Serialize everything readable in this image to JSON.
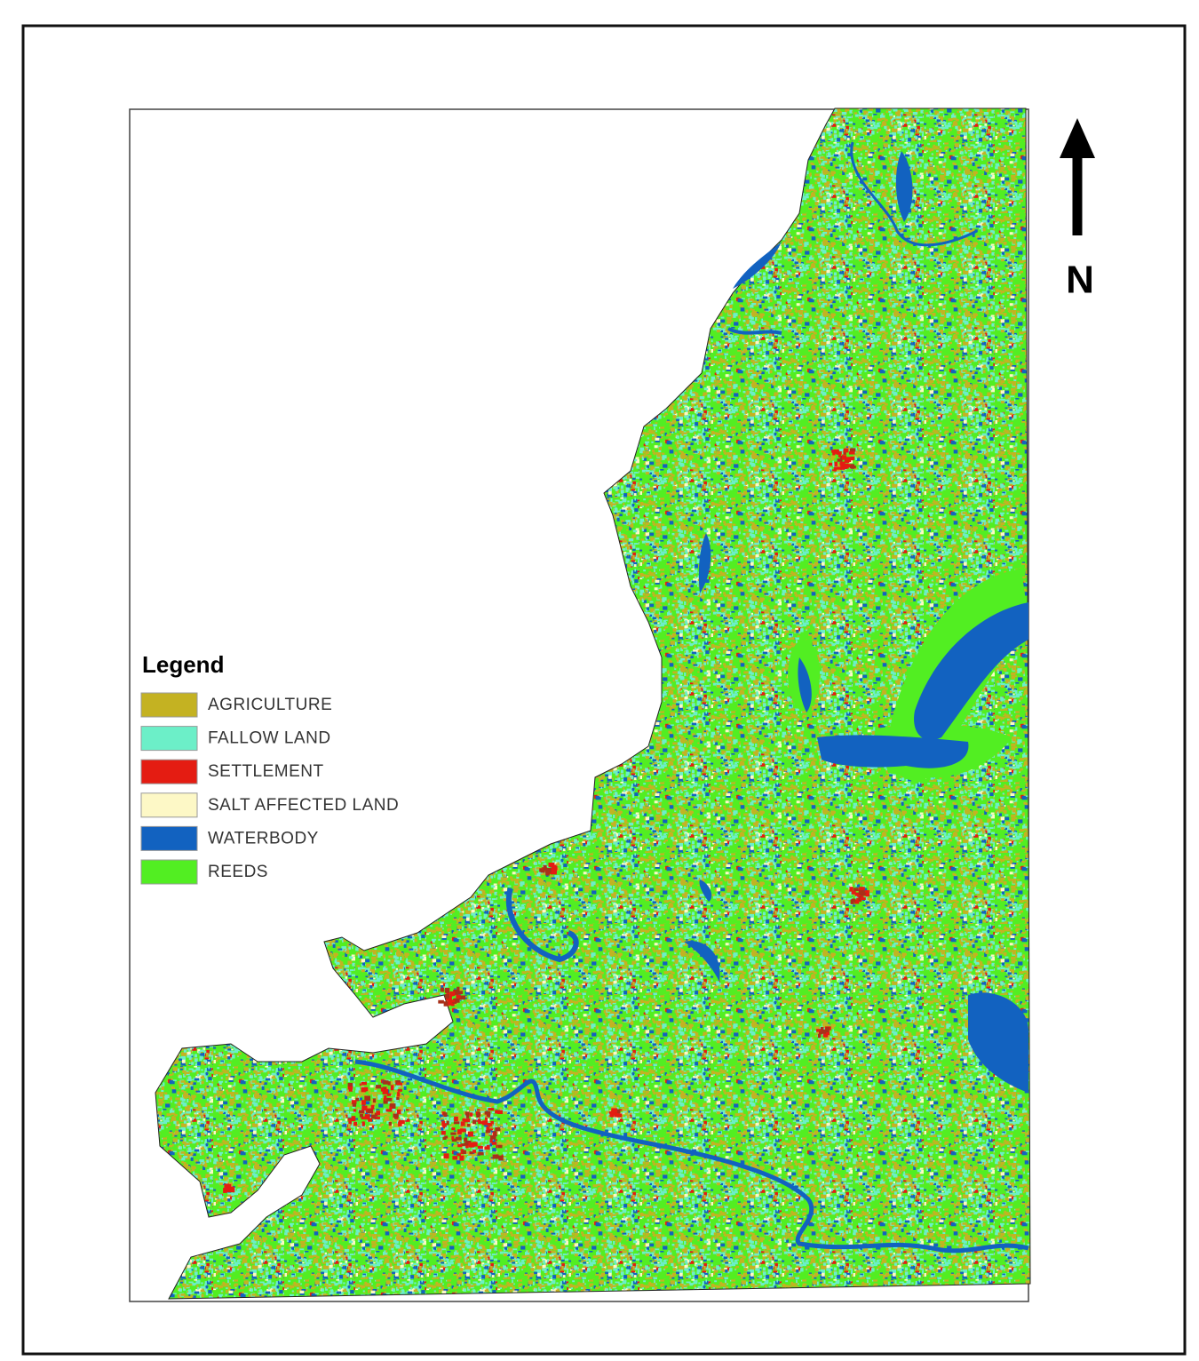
{
  "legend": {
    "title": "Legend",
    "items": [
      {
        "label": "AGRICULTURE",
        "color": "#c4b222"
      },
      {
        "label": "FALLOW LAND",
        "color": "#6cefc8"
      },
      {
        "label": "SETTLEMENT",
        "color": "#e41c12"
      },
      {
        "label": "SALT AFFECTED LAND",
        "color": "#fdf8c6"
      },
      {
        "label": "WATERBODY",
        "color": "#1262c0"
      },
      {
        "label": "REEDS",
        "color": "#52ee22"
      }
    ]
  },
  "north_label": "N"
}
